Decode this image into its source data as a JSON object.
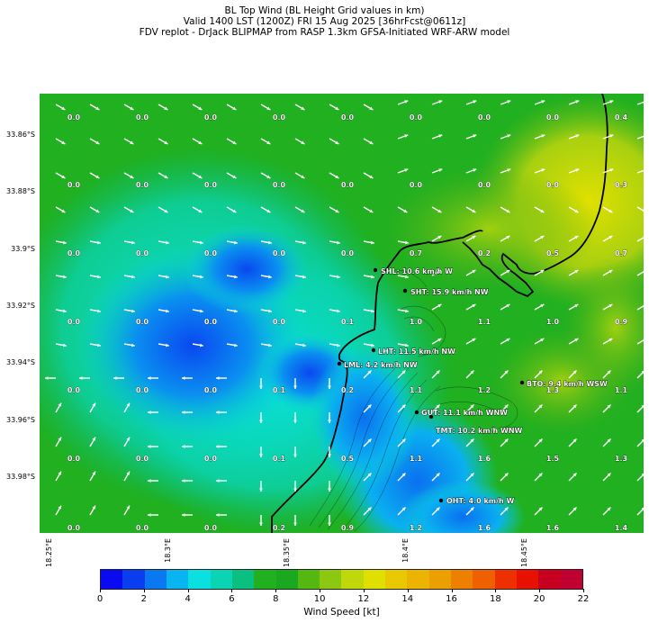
{
  "title_lines": [
    "BL Top Wind (BL Height Grid values in km)",
    "Valid 1400 LST (1200Z) FRI 15 Aug 2025 [36hrFcst@0611z]",
    "FDV replot - DrJack BLIPMAP from RASP 1.3km GFSA-Initiated WRF-ARW model"
  ],
  "y_axis_labels": [
    "33.86°S",
    "33.88°S",
    "33.9°S",
    "33.92°S",
    "33.94°S",
    "33.96°S",
    "33.98°S"
  ],
  "x_axis_labels": [
    "18.25°E",
    "18.3°E",
    "18.35°E",
    "18.4°E",
    "18.45°E"
  ],
  "grid_values": [
    [
      "0.0",
      "0.0",
      "0.0",
      "0.0",
      "0.0",
      "0.0",
      "0.0",
      "0.0",
      "0.4"
    ],
    [
      "0.0",
      "0.0",
      "0.0",
      "0.0",
      "0.0",
      "0.0",
      "0.0",
      "0.0",
      "0.3"
    ],
    [
      "0.0",
      "0.0",
      "0.0",
      "0.0",
      "0.0",
      "0.7",
      "0.2",
      "0.5",
      "0.7"
    ],
    [
      "0.0",
      "0.0",
      "0.0",
      "0.0",
      "0.1",
      "1.0",
      "1.1",
      "1.0",
      "0.9"
    ],
    [
      "0.0",
      "0.0",
      "0.0",
      "0.1",
      "0.2",
      "1.1",
      "1.2",
      "1.3",
      "1.1"
    ],
    [
      "0.0",
      "0.0",
      "0.0",
      "0.1",
      "0.5",
      "1.1",
      "1.6",
      "1.5",
      "1.3"
    ],
    [
      "0.0",
      "0.0",
      "0.0",
      "0.2",
      "0.9",
      "1.2",
      "1.6",
      "1.6",
      "1.4"
    ]
  ],
  "stations": [
    {
      "code": "SHL",
      "text": "SHL: 10.6 km/h W"
    },
    {
      "code": "SHT",
      "text": "SHT: 15.9 km/h NW"
    },
    {
      "code": "LHT",
      "text": "LHT: 11.5 km/h NW"
    },
    {
      "code": "LML",
      "text": "LML: 4.2 km/h NW"
    },
    {
      "code": "BTO",
      "text": "BTO: 9.4 km/h WSW"
    },
    {
      "code": "GUT",
      "text": "GUT: 11.1 km/h WNW"
    },
    {
      "code": "TMT",
      "text": "TMT: 10.2 km/h WNW"
    },
    {
      "code": "OHT",
      "text": "OHT: 4.0 km/h W"
    }
  ],
  "colorbar": {
    "ticks": [
      "0",
      "2",
      "4",
      "6",
      "8",
      "10",
      "12",
      "14",
      "16",
      "18",
      "20",
      "22"
    ],
    "label": "Wind Speed [kt]",
    "colors": [
      "#0a0af0",
      "#0a3cf0",
      "#0a78f0",
      "#0ab4f0",
      "#0ae0e0",
      "#0ad4b4",
      "#0ac080",
      "#20b020",
      "#1aa820",
      "#55b810",
      "#8cc810",
      "#c0d80a",
      "#e0e000",
      "#e8c800",
      "#eab400",
      "#eca000",
      "#ee8000",
      "#ee6000",
      "#ee3000",
      "#e81000",
      "#c80020",
      "#c00030"
    ]
  }
}
